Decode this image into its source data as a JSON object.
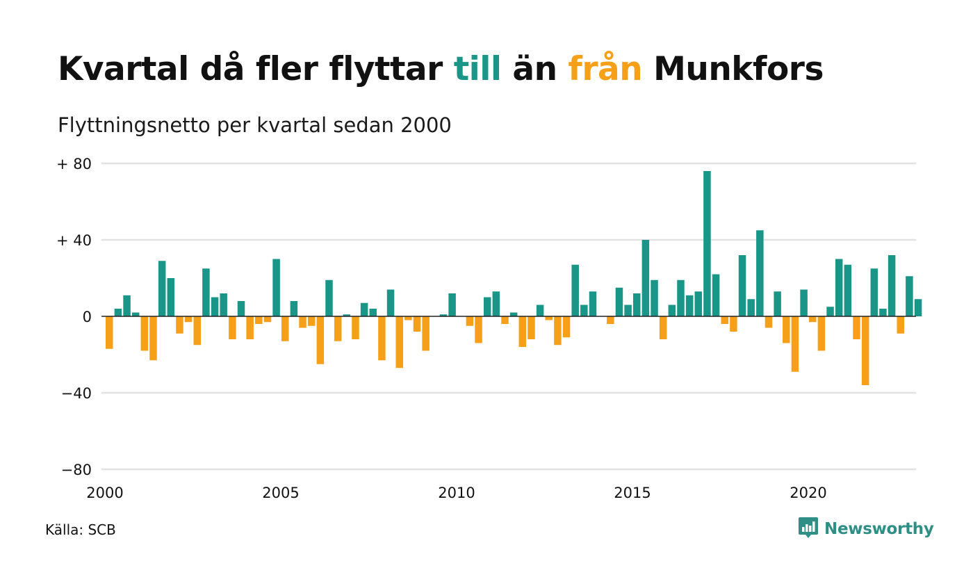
{
  "header": {
    "title_part1": "Kvartal då fler flyttar ",
    "title_in": "till",
    "title_part2": " än ",
    "title_out": "från",
    "title_part3": " Munkfors",
    "subtitle": "Flyttningsnetto per kvartal sedan 2000"
  },
  "footer": {
    "source": "Källa: SCB",
    "brand": "Newsworthy",
    "brand_icon": "bar-chart-chat-icon"
  },
  "colors": {
    "positive": "#1a9688",
    "negative": "#f6a01a",
    "grid": "#e2e2e2",
    "baseline": "#222222",
    "brand": "#2f8f86"
  },
  "chart_data": {
    "type": "bar",
    "title": "Kvartal då fler flyttar till än från Munkfors",
    "subtitle": "Flyttningsnetto per kvartal sedan 2000",
    "xlabel": "",
    "ylabel": "",
    "ylim": [
      -80,
      80
    ],
    "yticks": [
      80,
      40,
      0,
      -40,
      -80
    ],
    "ytick_labels": [
      "+ 80",
      "+ 40",
      "0",
      "−40",
      "−80"
    ],
    "xticks": [
      2000,
      2005,
      2010,
      2015,
      2020
    ],
    "xtick_labels": [
      "2000",
      "2005",
      "2010",
      "2015",
      "2020"
    ],
    "start_year": 2000,
    "grid": true,
    "legend": false,
    "series": [
      {
        "values": [
          -17,
          4,
          11,
          2,
          -18,
          -23,
          29,
          20,
          -9,
          -3,
          -15,
          25,
          10,
          12,
          -12,
          8,
          -12,
          -4,
          -3,
          30,
          -13,
          8,
          -6,
          -5,
          -25,
          19,
          -13,
          1,
          -12,
          7,
          4,
          -23,
          14,
          -27,
          -2,
          -8,
          -18,
          0,
          1,
          12,
          0,
          -5,
          -14,
          10,
          13,
          -4,
          2,
          -16,
          -12,
          6,
          -2,
          -15,
          -11,
          27,
          6,
          13,
          0,
          -4,
          15,
          6,
          12,
          40,
          19,
          -12,
          6,
          19,
          11,
          13,
          76,
          22,
          -4,
          -8,
          32,
          9,
          45,
          -6,
          13,
          -14,
          -29,
          14,
          -3,
          -18,
          5,
          30,
          27,
          -12,
          -36,
          25,
          4,
          32,
          -9,
          21,
          9
        ]
      }
    ]
  }
}
